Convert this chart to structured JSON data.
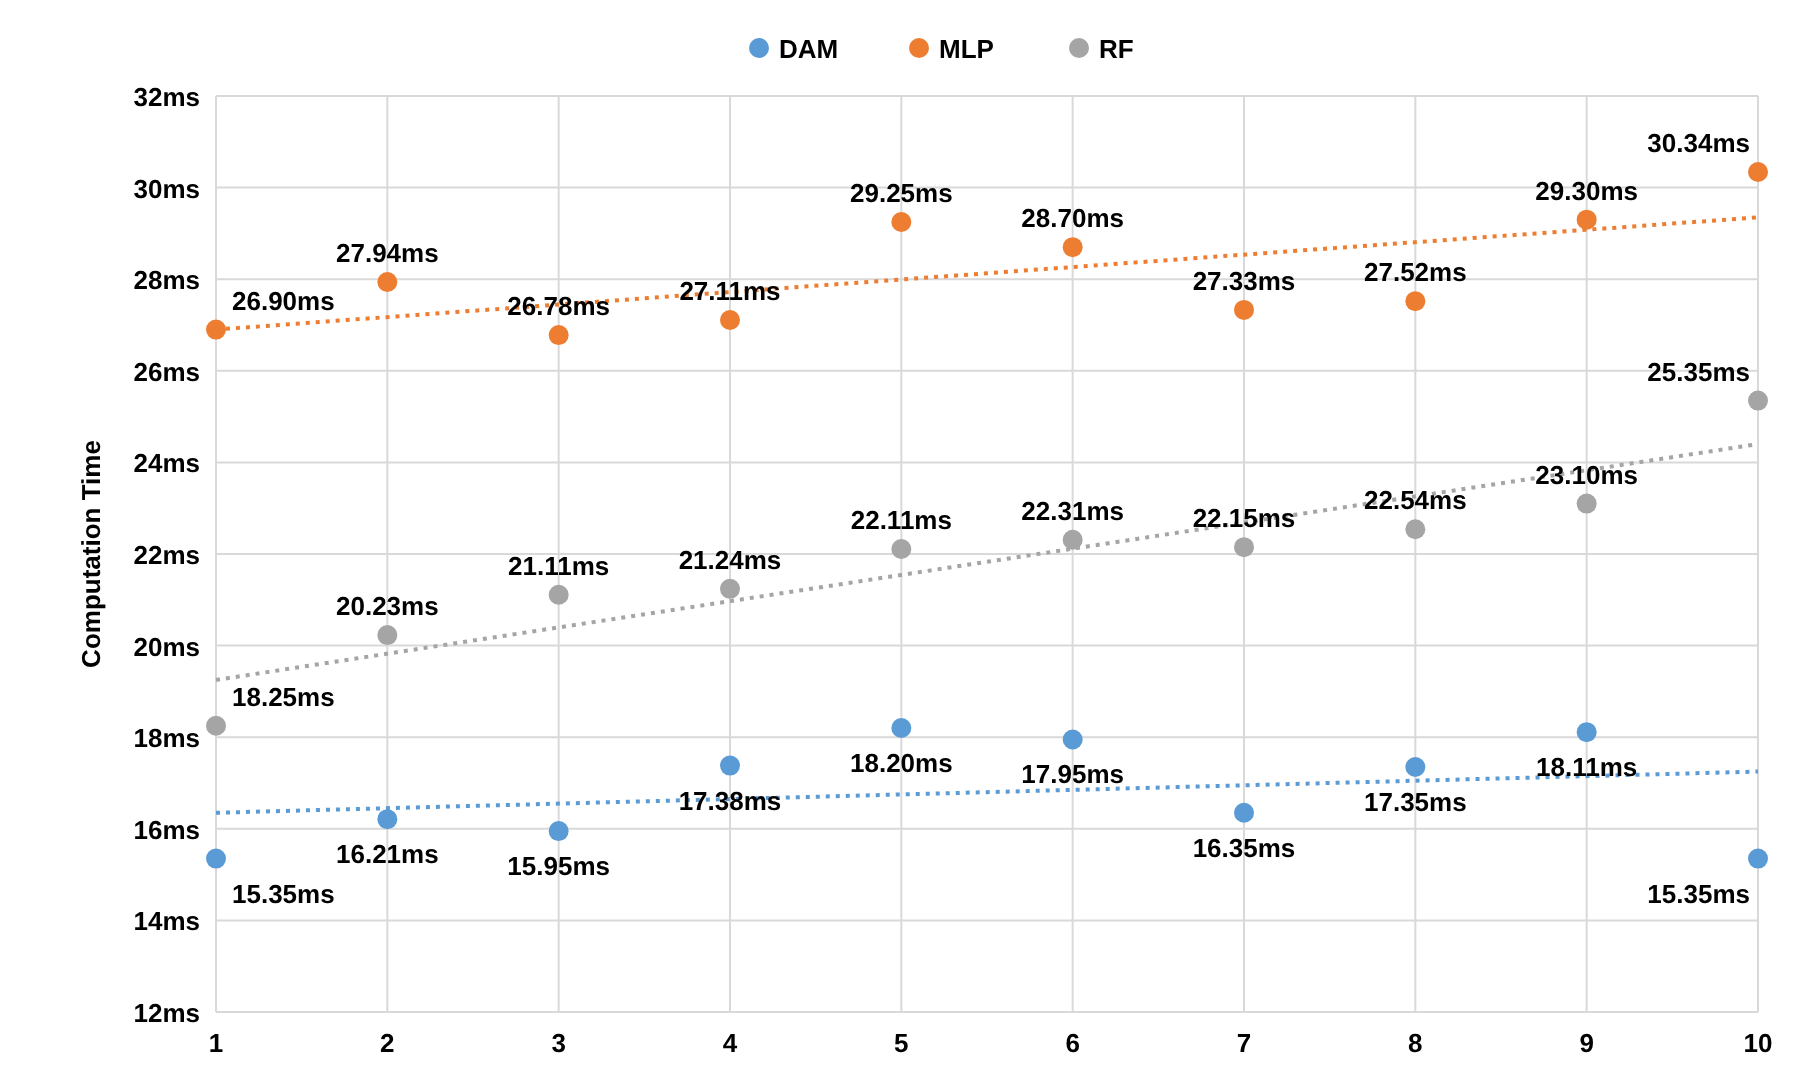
{
  "chart_data": {
    "type": "scatter",
    "ylabel": "Computation Time",
    "x": [
      1,
      2,
      3,
      4,
      5,
      6,
      7,
      8,
      9,
      10
    ],
    "xlim": [
      1,
      10
    ],
    "xticks": [
      1,
      2,
      3,
      4,
      5,
      6,
      7,
      8,
      9,
      10
    ],
    "ylim": [
      12,
      32
    ],
    "yticks": [
      {
        "value": 12,
        "label": "12ms"
      },
      {
        "value": 14,
        "label": "14ms"
      },
      {
        "value": 16,
        "label": "16ms"
      },
      {
        "value": 18,
        "label": "18ms"
      },
      {
        "value": 20,
        "label": "20ms"
      },
      {
        "value": 22,
        "label": "22ms"
      },
      {
        "value": 24,
        "label": "24ms"
      },
      {
        "value": 26,
        "label": "26ms"
      },
      {
        "value": 28,
        "label": "28ms"
      },
      {
        "value": 30,
        "label": "30ms"
      },
      {
        "value": 32,
        "label": "32ms"
      }
    ],
    "grid": true,
    "legend": "top",
    "marker": "circle",
    "series": [
      {
        "name": "DAM",
        "color": "#5b9bd5",
        "values": [
          15.35,
          16.21,
          15.95,
          17.38,
          18.2,
          17.95,
          16.35,
          17.35,
          18.11,
          15.35
        ],
        "value_labels": [
          "15.35ms",
          "16.21ms",
          "15.95ms",
          "17.38ms",
          "18.20ms",
          "17.95ms",
          "16.35ms",
          "17.35ms",
          "18.11ms",
          "15.35ms"
        ]
      },
      {
        "name": "MLP",
        "color": "#ed7d31",
        "values": [
          26.9,
          27.94,
          26.78,
          27.11,
          29.25,
          28.7,
          27.33,
          27.52,
          29.3,
          30.34
        ],
        "value_labels": [
          "26.90ms",
          "27.94ms",
          "26.78ms",
          "27.11ms",
          "29.25ms",
          "28.70ms",
          "27.33ms",
          "27.52ms",
          "29.30ms",
          "30.34ms"
        ]
      },
      {
        "name": "RF",
        "color": "#a5a5a5",
        "values": [
          18.25,
          20.23,
          21.11,
          21.24,
          22.11,
          22.31,
          22.15,
          22.54,
          23.1,
          25.35
        ],
        "value_labels": [
          "18.25ms",
          "20.23ms",
          "21.11ms",
          "21.24ms",
          "22.11ms",
          "22.31ms",
          "22.15ms",
          "22.54ms",
          "23.10ms",
          "25.35ms"
        ]
      },
      {
        "type": "line",
        "line_style": "dotted",
        "marker": "none",
        "color": "#5b9bd5",
        "x": [
          1,
          5.5,
          10
        ],
        "values": [
          16.35,
          16.8,
          17.25
        ]
      },
      {
        "type": "line",
        "line_style": "dotted",
        "marker": "none",
        "color": "#ed7d31",
        "x": [
          1,
          5.5,
          10
        ],
        "values": [
          26.9,
          28.13,
          29.35
        ]
      },
      {
        "type": "line",
        "line_style": "dotted",
        "marker": "none",
        "color": "#a5a5a5",
        "x": [
          1,
          5.5,
          10
        ],
        "values": [
          19.25,
          21.83,
          24.4
        ]
      }
    ]
  }
}
